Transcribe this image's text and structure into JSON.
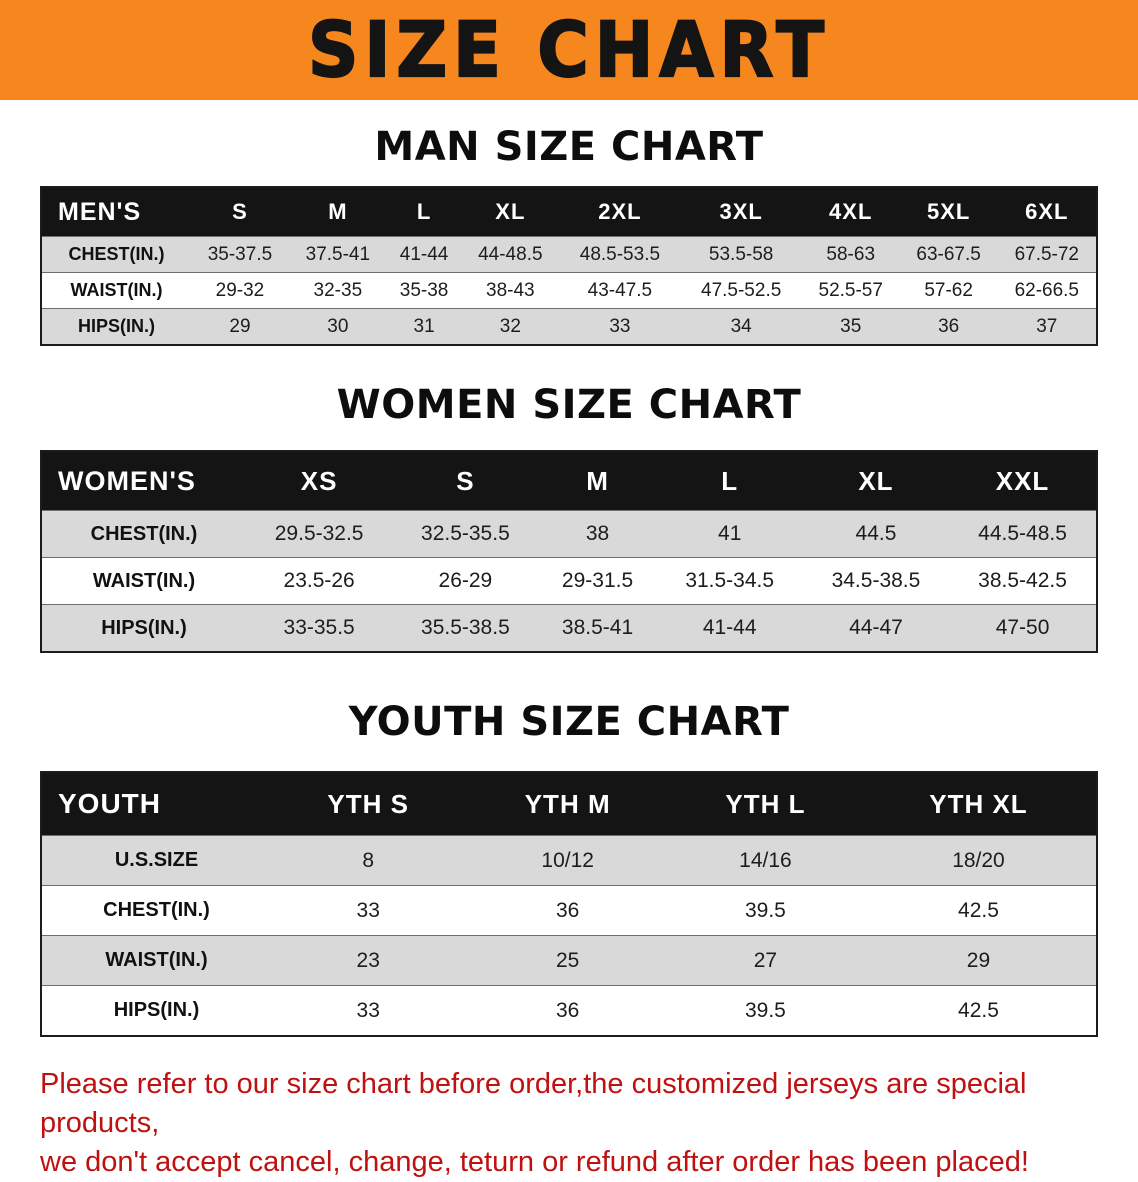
{
  "banner": {
    "title": "SIZE CHART",
    "bg_color": "#f6871f",
    "text_color": "#141414"
  },
  "sections": [
    {
      "heading": "MAN SIZE CHART",
      "table": {
        "header": [
          "MEN'S",
          "S",
          "M",
          "L",
          "XL",
          "2XL",
          "3XL",
          "4XL",
          "5XL",
          "6XL"
        ],
        "rows": [
          [
            "CHEST(IN.)",
            "35-37.5",
            "37.5-41",
            "41-44",
            "44-48.5",
            "48.5-53.5",
            "53.5-58",
            "58-63",
            "63-67.5",
            "67.5-72"
          ],
          [
            "WAIST(IN.)",
            "29-32",
            "32-35",
            "35-38",
            "38-43",
            "43-47.5",
            "47.5-52.5",
            "52.5-57",
            "57-62",
            "62-66.5"
          ],
          [
            "HIPS(IN.)",
            "29",
            "30",
            "31",
            "32",
            "33",
            "34",
            "35",
            "36",
            "37"
          ]
        ]
      }
    },
    {
      "heading": "WOMEN SIZE CHART",
      "table": {
        "header": [
          "WOMEN'S",
          "XS",
          "S",
          "M",
          "L",
          "XL",
          "XXL"
        ],
        "rows": [
          [
            "CHEST(IN.)",
            "29.5-32.5",
            "32.5-35.5",
            "38",
            "41",
            "44.5",
            "44.5-48.5"
          ],
          [
            "WAIST(IN.)",
            "23.5-26",
            "26-29",
            "29-31.5",
            "31.5-34.5",
            "34.5-38.5",
            "38.5-42.5"
          ],
          [
            "HIPS(IN.)",
            "33-35.5",
            "35.5-38.5",
            "38.5-41",
            "41-44",
            "44-47",
            "47-50"
          ]
        ]
      }
    },
    {
      "heading": "YOUTH SIZE CHART",
      "table": {
        "header": [
          "YOUTH",
          "YTH S",
          "YTH M",
          "YTH L",
          "YTH XL"
        ],
        "rows": [
          [
            "U.S.SIZE",
            "8",
            "10/12",
            "14/16",
            "18/20"
          ],
          [
            "CHEST(IN.)",
            "33",
            "36",
            "39.5",
            "42.5"
          ],
          [
            "WAIST(IN.)",
            "23",
            "25",
            "27",
            "29"
          ],
          [
            "HIPS(IN.)",
            "33",
            "36",
            "39.5",
            "42.5"
          ]
        ]
      }
    }
  ],
  "footer_note": {
    "color": "#c01111",
    "lines": [
      "Please refer to our size chart before order,the customized jerseys are special products,",
      "we don't accept cancel, change, teturn or refund after order has been placed!"
    ]
  }
}
